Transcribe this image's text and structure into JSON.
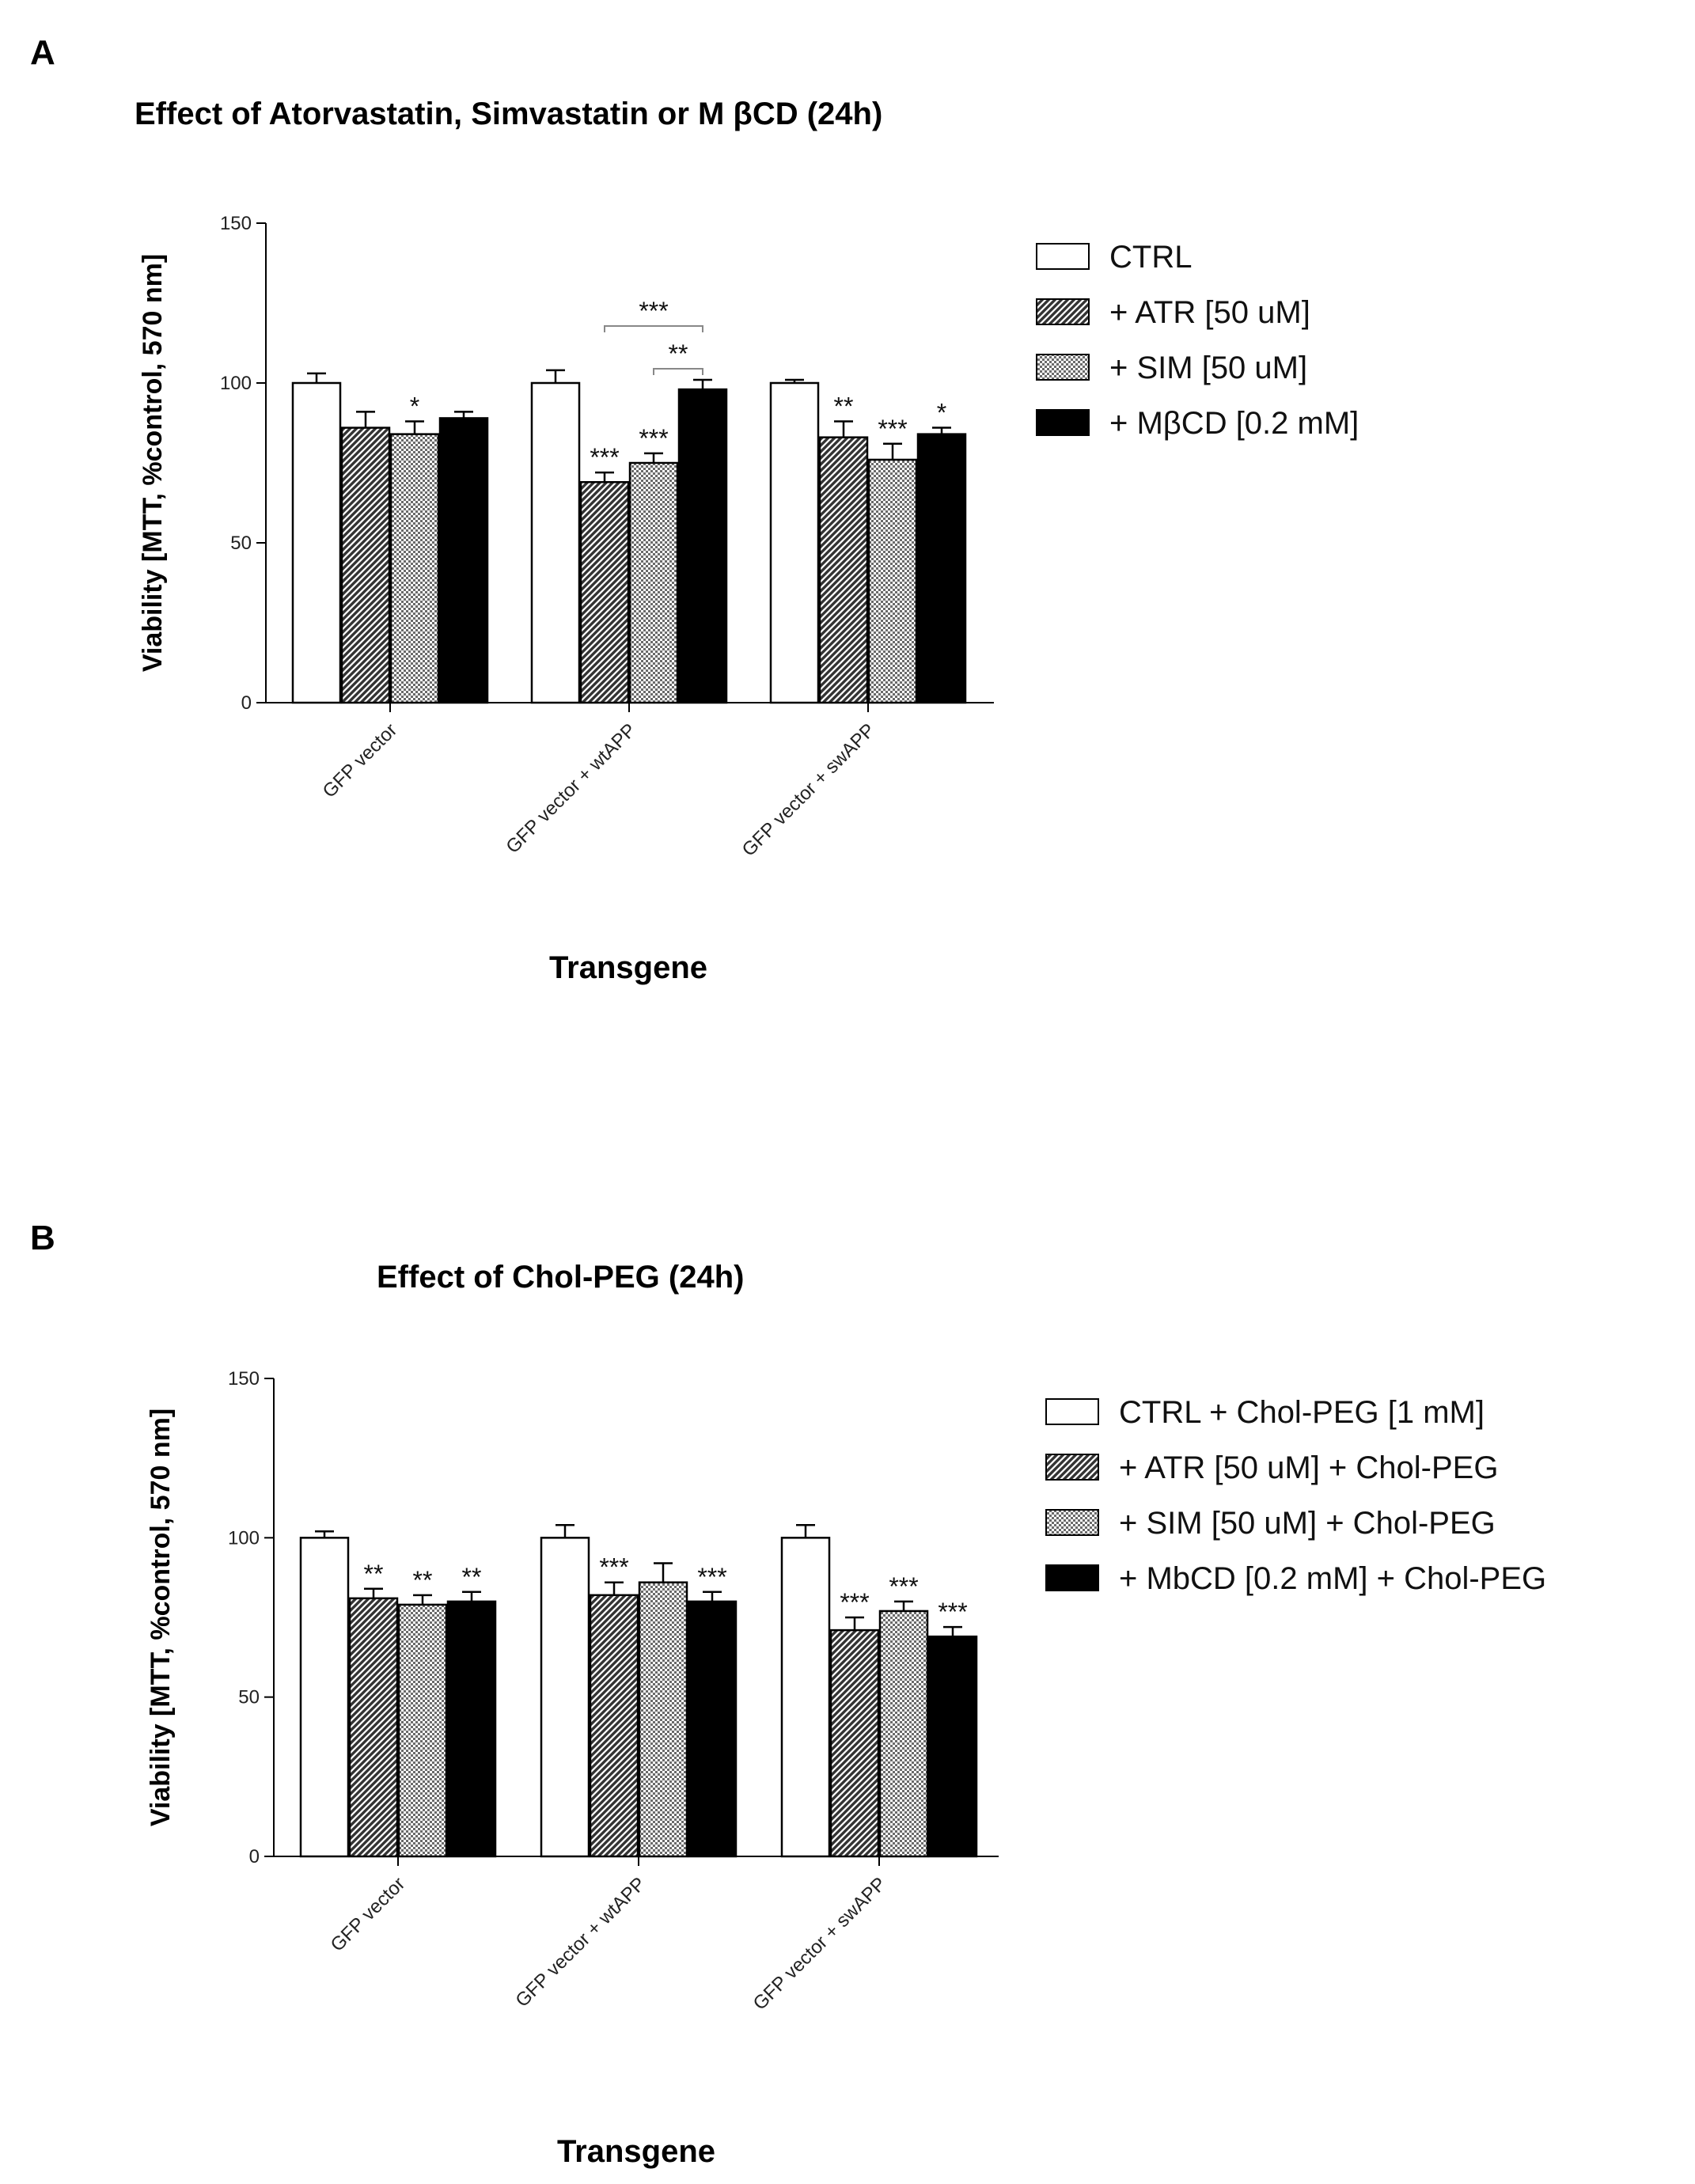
{
  "chart_data": [
    {
      "panel_letter": "A",
      "type": "bar",
      "title": "Effect of Atorvastatin, Simvastatin or M βCD (24h)",
      "xlabel": "Transgene",
      "ylabel": "Viability [MTT, %control, 570 nm]",
      "ylim": [
        0,
        150
      ],
      "yticks": [
        0,
        50,
        100,
        150
      ],
      "categories": [
        "GFP vector",
        "GFP vector + wtAPP",
        "GFP vector + swAPP"
      ],
      "legend_position": "right",
      "grid": false,
      "series": [
        {
          "name": "CTRL",
          "pattern": "white",
          "values": [
            100,
            100,
            100
          ],
          "errors": [
            3,
            4,
            1
          ],
          "stars": [
            "",
            "",
            ""
          ]
        },
        {
          "name": "+ ATR [50 uM]",
          "pattern": "diagonal",
          "values": [
            86,
            69,
            83
          ],
          "errors": [
            5,
            3,
            5
          ],
          "stars": [
            "",
            "***",
            "**"
          ]
        },
        {
          "name": "+ SIM [50 uM]",
          "pattern": "checker",
          "values": [
            84,
            75,
            76
          ],
          "errors": [
            4,
            3,
            5
          ],
          "stars": [
            "*",
            "***",
            "***"
          ]
        },
        {
          "name": "+ MβCD [0.2 mM]",
          "pattern": "black",
          "values": [
            89,
            98,
            84
          ],
          "errors": [
            2,
            3,
            2
          ],
          "stars": [
            "",
            "",
            "*"
          ]
        }
      ],
      "brackets": [
        {
          "from_series": 1,
          "to_series": 3,
          "category": 1,
          "label": "***"
        },
        {
          "from_series": 2,
          "to_series": 3,
          "category": 1,
          "label": "**"
        }
      ]
    },
    {
      "panel_letter": "B",
      "type": "bar",
      "title": "Effect of Chol-PEG (24h)",
      "xlabel": "Transgene",
      "ylabel": "Viability [MTT, %control, 570 nm]",
      "ylim": [
        0,
        150
      ],
      "yticks": [
        0,
        50,
        100,
        150
      ],
      "categories": [
        "GFP vector",
        "GFP vector + wtAPP",
        "GFP vector + swAPP"
      ],
      "legend_position": "right",
      "grid": false,
      "series": [
        {
          "name": "CTRL + Chol-PEG [1 mM]",
          "pattern": "white",
          "values": [
            100,
            100,
            100
          ],
          "errors": [
            2,
            4,
            4
          ],
          "stars": [
            "",
            "",
            ""
          ]
        },
        {
          "name": "+ ATR [50 uM] + Chol-PEG",
          "pattern": "diagonal",
          "values": [
            81,
            82,
            71
          ],
          "errors": [
            3,
            4,
            4
          ],
          "stars": [
            "**",
            "***",
            "***"
          ]
        },
        {
          "name": "+ SIM [50 uM] + Chol-PEG",
          "pattern": "checker",
          "values": [
            79,
            86,
            77
          ],
          "errors": [
            3,
            6,
            3
          ],
          "stars": [
            "**",
            "",
            "***"
          ]
        },
        {
          "name": "+ MbCD [0.2 mM] + Chol-PEG",
          "pattern": "black",
          "values": [
            80,
            80,
            69
          ],
          "errors": [
            3,
            3,
            3
          ],
          "stars": [
            "**",
            "***",
            "***"
          ]
        }
      ],
      "brackets": []
    }
  ]
}
